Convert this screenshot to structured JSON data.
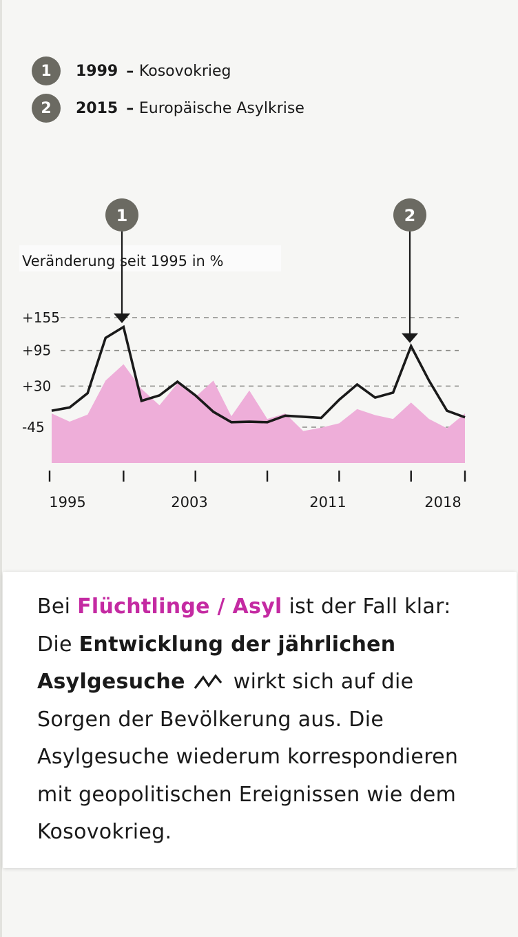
{
  "legend": [
    {
      "num": "1",
      "year": "1999",
      "event": "Kosovokrieg"
    },
    {
      "num": "2",
      "year": "2015",
      "event": "Europäische Asylkrise"
    }
  ],
  "colors": {
    "area": "#eeaed9",
    "line": "#1a1a1a",
    "badge": "#6b6a62",
    "highlight": "#c42aa2"
  },
  "chart_data": {
    "type": "line",
    "title": "",
    "ylabel": "Veränderung seit 1995 in %",
    "xlabel": "",
    "x_ticks": [
      "1995",
      "2003",
      "2011",
      "2018"
    ],
    "y_ticks": [
      "+155",
      "+95",
      "+30",
      "-45"
    ],
    "ylim": [
      -105,
      190
    ],
    "xlim": [
      1995,
      2018
    ],
    "grid": "horizontal-dashed",
    "annotations": [
      {
        "label": "1",
        "x": 1999,
        "target_value": 155
      },
      {
        "label": "2",
        "x": 2015,
        "target_value": 115
      }
    ],
    "series": [
      {
        "name": "",
        "style": "line",
        "x": [
          1995,
          1996,
          1997,
          1998,
          1999,
          2000,
          2001,
          2002,
          2003,
          2004,
          2005,
          2006,
          2007,
          2008,
          2009,
          2010,
          2011,
          2012,
          2013,
          2014,
          2015,
          2016,
          2017,
          2018
        ],
        "values": [
          -15,
          -9,
          17,
          118,
          138,
          3,
          13,
          38,
          13,
          -17,
          -36,
          -35,
          -36,
          -24,
          -26,
          -28,
          5,
          33,
          9,
          18,
          103,
          40,
          -15,
          -27
        ]
      },
      {
        "name": "",
        "style": "area",
        "x": [
          1995,
          1996,
          1997,
          1998,
          1999,
          2000,
          2001,
          2002,
          2003,
          2004,
          2005,
          2006,
          2007,
          2008,
          2009,
          2010,
          2011,
          2012,
          2013,
          2014,
          2015,
          2016,
          2017,
          2018
        ],
        "values": [
          -20,
          -35,
          -22,
          40,
          70,
          25,
          -5,
          35,
          10,
          40,
          -25,
          22,
          -30,
          -20,
          -52,
          -46,
          -38,
          -12,
          -23,
          -30,
          0,
          -30,
          -47,
          -20
        ]
      }
    ]
  },
  "card": {
    "t1": "Bei ",
    "highlight": "Flüchtlinge / Asyl",
    "t2": " ist der Fall klar: Die ",
    "bold": "Entwicklung der jährlichen Asylgesuche",
    "t3": "wirkt sich auf die Sorgen der Bevölkerung aus. Die Asylgesuche wiederum korrespondieren mit geopolitischen Ereignissen wie dem Kosovokrieg."
  }
}
